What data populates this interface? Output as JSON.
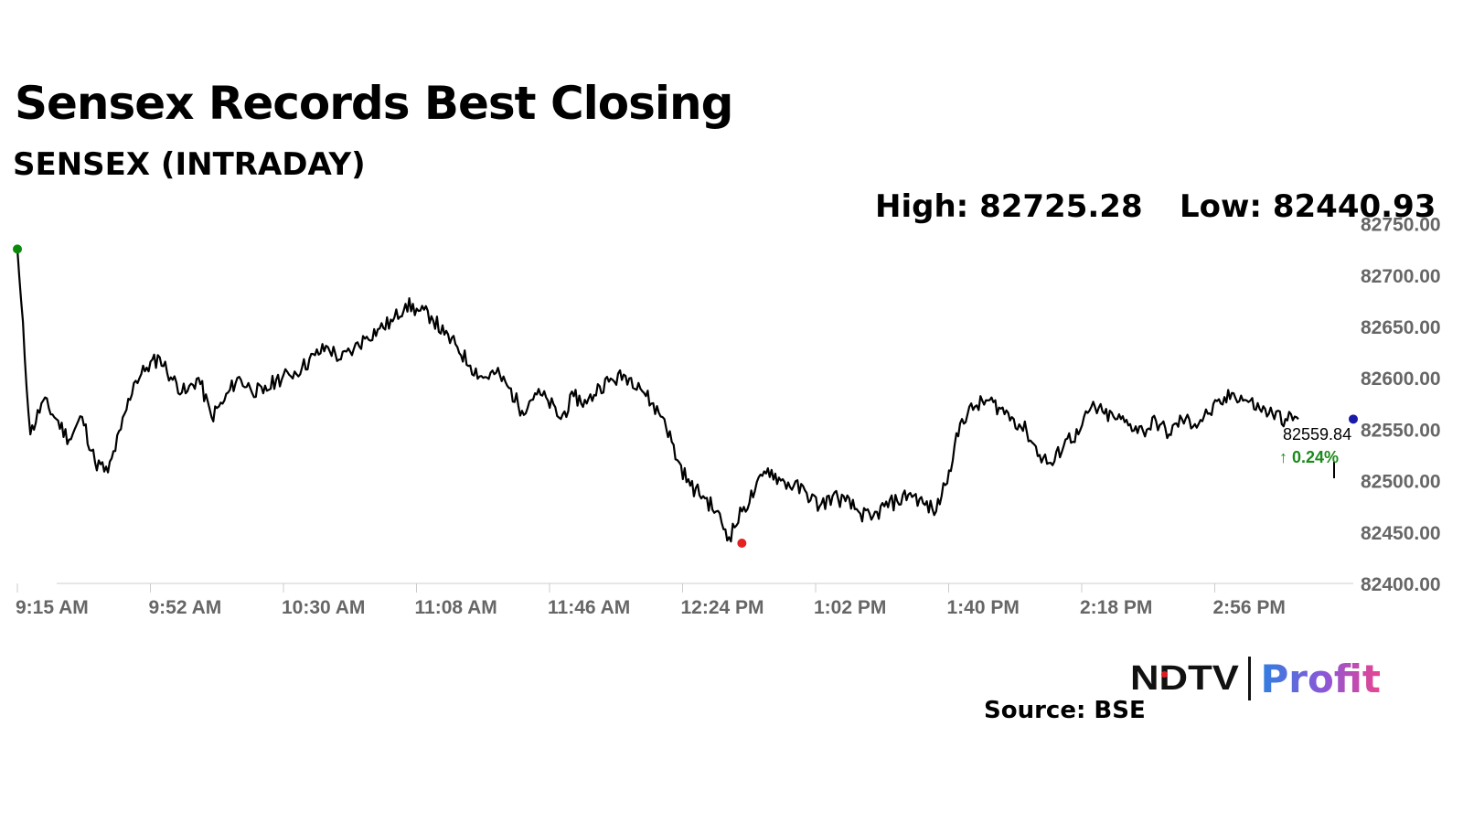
{
  "header": {
    "title": "Sensex Records Best Closing",
    "subtitle": "SENSEX (INTRADAY)",
    "high_text": "High: 82725.28",
    "low_text": "Low: 82440.93"
  },
  "footer": {
    "logo_left": "NDTV",
    "logo_right": "Profit",
    "source": "Source: BSE"
  },
  "chart_data": {
    "type": "line",
    "title": "SENSEX (INTRADAY)",
    "xlabel": "",
    "ylabel": "",
    "ylim": [
      82400,
      82730
    ],
    "grid": false,
    "y_ticks": [
      "82400.00",
      "82450.00",
      "82500.00",
      "82550.00",
      "82600.00",
      "82650.00",
      "82700.00",
      "82750.00"
    ],
    "x_ticks": [
      "9:15 AM",
      "9:52 AM",
      "10:30 AM",
      "11:08 AM",
      "11:46 AM",
      "12:24 PM",
      "1:02 PM",
      "1:40 PM",
      "2:18 PM",
      "2:56 PM"
    ],
    "high": 82725.28,
    "low": 82440.93,
    "last_value": "82559.84",
    "change_text": "↑ 0.24%",
    "colors": {
      "line": "#000000",
      "high_marker": "#0a8a0a",
      "low_marker": "#e52222",
      "last_marker": "#1a1aa8",
      "change": "#1a8c1a",
      "axis_text": "#666666"
    },
    "series": [
      {
        "x": [
          "9:15 AM",
          "9:18 AM",
          "9:22 AM",
          "9:26 AM",
          "9:30 AM",
          "9:34 AM",
          "9:38 AM",
          "9:42 AM",
          "9:46 AM",
          "9:49 AM",
          "9:52 AM",
          "9:56 AM",
          "10:00 AM",
          "10:04 AM",
          "10:08 AM",
          "10:12 AM",
          "10:16 AM",
          "10:20 AM",
          "10:24 AM",
          "10:27 AM",
          "10:30 AM",
          "10:34 AM",
          "10:38 AM",
          "10:42 AM",
          "10:46 AM",
          "10:50 AM",
          "10:54 AM",
          "10:58 AM",
          "11:02 AM",
          "11:05 AM",
          "11:08 AM",
          "11:12 AM",
          "11:16 AM",
          "11:20 AM",
          "11:24 AM",
          "11:28 AM",
          "11:32 AM",
          "11:36 AM",
          "11:40 AM",
          "11:43 AM",
          "11:46 AM",
          "11:50 AM",
          "11:54 AM",
          "11:58 AM",
          "12:02 PM",
          "12:06 PM",
          "12:10 PM",
          "12:14 PM",
          "12:18 PM",
          "12:21 PM",
          "12:24 PM",
          "12:28 PM",
          "12:32 PM",
          "12:36 PM",
          "12:40 PM",
          "12:44 PM",
          "12:48 PM",
          "12:52 PM",
          "12:56 PM",
          "12:59 PM",
          "1:02 PM",
          "1:06 PM",
          "1:10 PM",
          "1:14 PM",
          "1:18 PM",
          "1:22 PM",
          "1:26 PM",
          "1:30 PM",
          "1:34 PM",
          "1:37 PM",
          "1:40 PM",
          "1:44 PM",
          "1:48 PM",
          "1:52 PM",
          "1:56 PM",
          "2:00 PM",
          "2:04 PM",
          "2:08 PM",
          "2:12 PM",
          "2:15 PM",
          "2:18 PM",
          "2:22 PM",
          "2:26 PM",
          "2:30 PM",
          "2:34 PM",
          "2:38 PM",
          "2:42 PM",
          "2:46 PM",
          "2:50 PM",
          "2:53 PM",
          "2:56 PM",
          "3:00 PM",
          "3:04 PM",
          "3:08 PM",
          "3:12 PM",
          "3:16 PM",
          "3:20 PM",
          "3:24 PM",
          "3:28 PM",
          "3:30 PM"
        ],
        "values": [
          82725.28,
          82545,
          82578,
          82560,
          82540,
          82562,
          82518,
          82508,
          82550,
          82595,
          82610,
          82620,
          82598,
          82585,
          82600,
          82562,
          82578,
          82600,
          82590,
          82585,
          82598,
          82603,
          82610,
          82622,
          82630,
          82618,
          82628,
          82640,
          82648,
          82655,
          82672,
          82665,
          82660,
          82642,
          82630,
          82612,
          82600,
          82605,
          82590,
          82568,
          82585,
          82578,
          82560,
          82582,
          82575,
          82592,
          82598,
          82602,
          82595,
          82575,
          82560,
          82520,
          82495,
          82485,
          82470,
          82445,
          82470,
          82490,
          82512,
          82500,
          82495,
          82488,
          82475,
          82485,
          82480,
          82470,
          82462,
          82475,
          82480,
          82488,
          82478,
          82470,
          82510,
          82560,
          82572,
          82578,
          82570,
          82560,
          82548,
          82525,
          82515,
          82540,
          82545,
          82572,
          82565,
          82560,
          82555,
          82548,
          82558,
          82545,
          82560,
          82555,
          82565,
          82575,
          82585,
          82578,
          82570,
          82565,
          82560,
          82559.84
        ]
      }
    ]
  }
}
